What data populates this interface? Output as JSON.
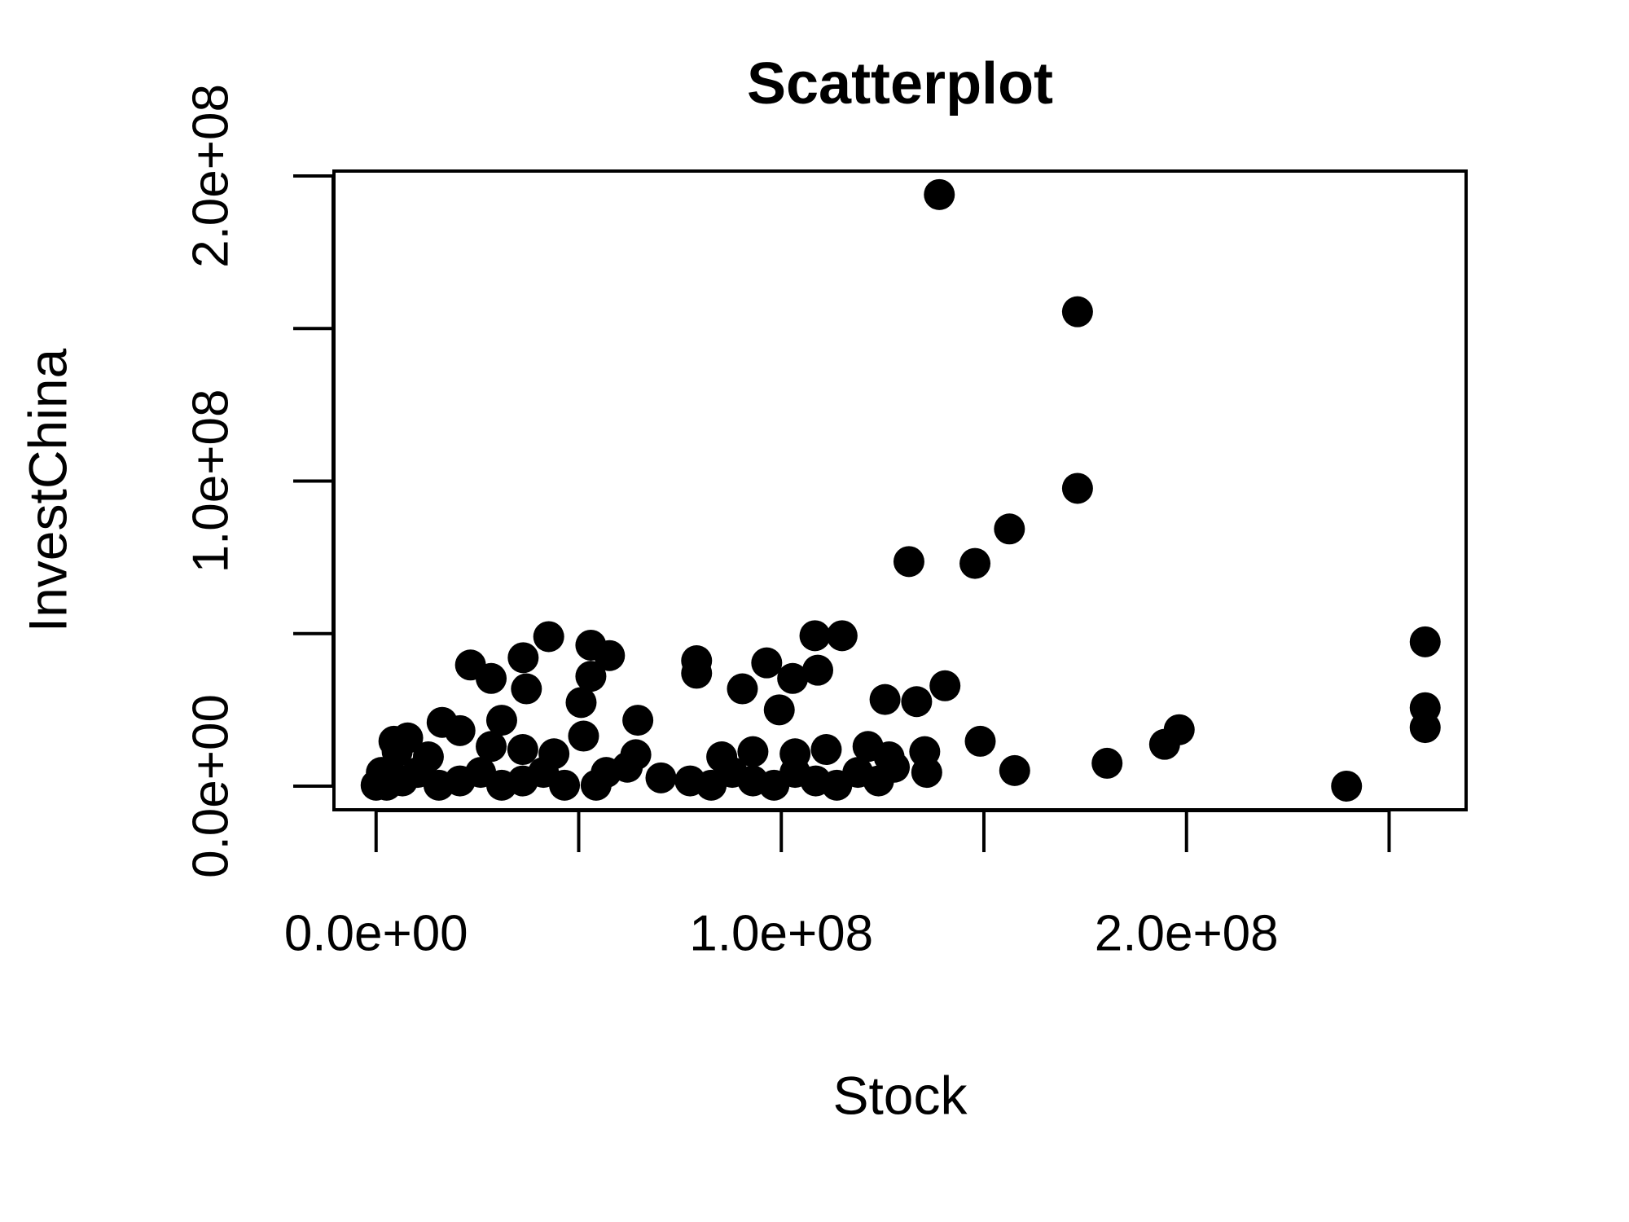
{
  "chart_data": {
    "type": "scatter",
    "title": "Scatterplot",
    "x_label": "Stock",
    "y_label": "InvestChina",
    "color": "#000000",
    "xlim": [
      -10400000,
      269000000
    ],
    "ylim": [
      -7750000,
      201600000
    ],
    "xticks": [
      {
        "value": 0,
        "label": "0.0e+00"
      },
      {
        "value": 50000000,
        "label": null
      },
      {
        "value": 100000000,
        "label": "1.0e+08"
      },
      {
        "value": 150000000,
        "label": null
      },
      {
        "value": 200000000,
        "label": "2.0e+08"
      },
      {
        "value": 250000000,
        "label": null
      }
    ],
    "yticks": [
      {
        "value": 0,
        "label": "0.0e+00"
      },
      {
        "value": 50000000,
        "label": null
      },
      {
        "value": 100000000,
        "label": "1.0e+08"
      },
      {
        "value": 150000000,
        "label": null
      },
      {
        "value": 200000000,
        "label": "2.0e+08"
      }
    ],
    "x": [
      139000000,
      173100000,
      173100000,
      156300000,
      147800000,
      131500000,
      258900000,
      258900000,
      258900000,
      239500000,
      198200000,
      194600000,
      180400000,
      157600000,
      149100000,
      140400000,
      133400000,
      135400000,
      135900000,
      125600000,
      115000000,
      108300000,
      109000000,
      102800000,
      96400000,
      99500000,
      90400000,
      79100000,
      79100000,
      70300000,
      64600000,
      64100000,
      57600000,
      53000000,
      53000000,
      50600000,
      51200000,
      42600000,
      36300000,
      37100000,
      23300000,
      28400000,
      31000000,
      20700000,
      16300000,
      7800000,
      4400000,
      1300000,
      0,
      2600000,
      6500000,
      10300000,
      15500000,
      20700000,
      25800000,
      31000000,
      36200000,
      41300000,
      46500000,
      54300000,
      56800000,
      77500000,
      82700000,
      87900000,
      93000000,
      98200000,
      103400000,
      108500000,
      113700000,
      118900000,
      124000000,
      127900000,
      5200000,
      12900000,
      28400000,
      36200000,
      43900000,
      62000000,
      85300000,
      93000000,
      103400000,
      111100000,
      121400000,
      126600000
    ],
    "values": [
      193900000,
      155500000,
      97600000,
      84300000,
      73000000,
      73600000,
      47300000,
      25700000,
      19200000,
      0,
      18500000,
      13700000,
      7500000,
      5100000,
      14700000,
      32900000,
      27700000,
      11300000,
      4500000,
      28400000,
      49300000,
      49300000,
      38000000,
      35300000,
      40400000,
      25000000,
      31900000,
      41100000,
      37000000,
      2700000,
      21600000,
      10300000,
      42800000,
      46200000,
      36000000,
      27400000,
      16400000,
      49000000,
      42100000,
      31900000,
      39700000,
      35300000,
      21600000,
      18200000,
      20900000,
      15800000,
      14700000,
      4500000,
      300000,
      300000,
      1700000,
      4500000,
      300000,
      1700000,
      4500000,
      300000,
      1700000,
      4500000,
      300000,
      300000,
      4500000,
      1700000,
      300000,
      4500000,
      1700000,
      300000,
      4500000,
      1700000,
      300000,
      4500000,
      1700000,
      6200000,
      11300000,
      9600000,
      13000000,
      12000000,
      10600000,
      6200000,
      9600000,
      11300000,
      10600000,
      12000000,
      13000000,
      9600000
    ]
  }
}
